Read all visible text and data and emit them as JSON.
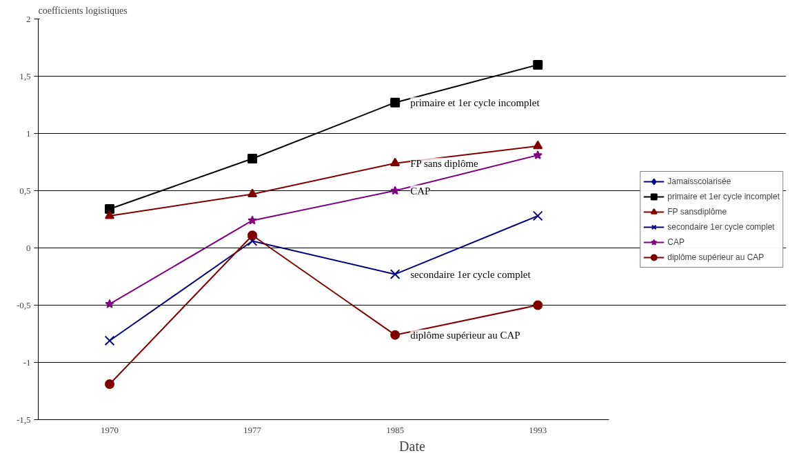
{
  "chart_data": {
    "type": "line",
    "ylabel": "coefficients logistiques",
    "xlabel": "Date",
    "categories": [
      "1970",
      "1977",
      "1985",
      "1993"
    ],
    "ylim": [
      -1.5,
      2
    ],
    "yticks": [
      {
        "value": -1.5,
        "label": "-1,5"
      },
      {
        "value": -1,
        "label": "-1"
      },
      {
        "value": -0.5,
        "label": "-0,5"
      },
      {
        "value": 0,
        "label": "0"
      },
      {
        "value": 0.5,
        "label": "0,5"
      },
      {
        "value": 1,
        "label": "1"
      },
      {
        "value": 1.5,
        "label": "1,5"
      },
      {
        "value": 2,
        "label": "2"
      }
    ],
    "grid": "y",
    "legend": "right",
    "series": [
      {
        "name": "Jamaisscolarisée",
        "color": "#000080",
        "marker": "diamond",
        "values": [
          null,
          null,
          null,
          null
        ]
      },
      {
        "name": "primaire et 1er cycle incomplet",
        "color": "#000000",
        "marker": "square",
        "values": [
          0.34,
          0.78,
          1.27,
          1.6
        ]
      },
      {
        "name": "FP sansdiplôme",
        "color": "#800000",
        "marker": "triangle",
        "values": [
          0.28,
          0.47,
          0.74,
          0.89
        ]
      },
      {
        "name": "secondaire 1er cycle complet",
        "color": "#000080",
        "marker": "cross",
        "values": [
          -0.81,
          0.06,
          -0.23,
          0.28
        ]
      },
      {
        "name": "CAP",
        "color": "#800080",
        "marker": "star",
        "values": [
          -0.49,
          0.24,
          0.5,
          0.81
        ]
      },
      {
        "name": "diplôme supérieur au CAP",
        "color": "#800000",
        "marker": "circle",
        "values": [
          -1.19,
          0.11,
          -0.76,
          -0.5
        ]
      }
    ],
    "annotations": [
      {
        "text": "primaire et 1er cycle incomplet",
        "x": "1985",
        "y": 1.27
      },
      {
        "text": "FP sans diplôme",
        "x": "1985",
        "y": 0.74
      },
      {
        "text": "CAP",
        "x": "1985",
        "y": 0.5
      },
      {
        "text": "secondaire 1er cycle complet",
        "x": "1985",
        "y": -0.23
      },
      {
        "text": "diplôme supérieur au CAP",
        "x": "1985",
        "y": -0.76
      }
    ]
  }
}
